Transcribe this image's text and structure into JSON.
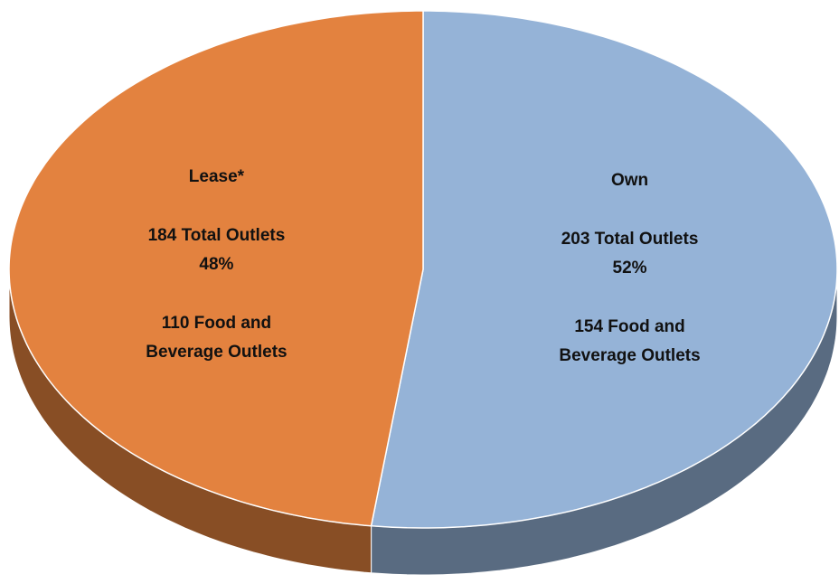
{
  "chart_data": {
    "type": "pie3d",
    "categories": [
      "Own",
      "Lease*"
    ],
    "values": [
      52,
      48
    ],
    "value_labels": [
      "52%",
      "48%"
    ],
    "total_labels": [
      "203 Total Outlets",
      "184 Total Outlets"
    ],
    "food_labels": [
      [
        "154 Food and",
        "Beverage Outlets"
      ],
      [
        "110 Food and",
        "Beverage Outlets"
      ]
    ],
    "colors": [
      "#95b3d7",
      "#e3823f"
    ]
  }
}
